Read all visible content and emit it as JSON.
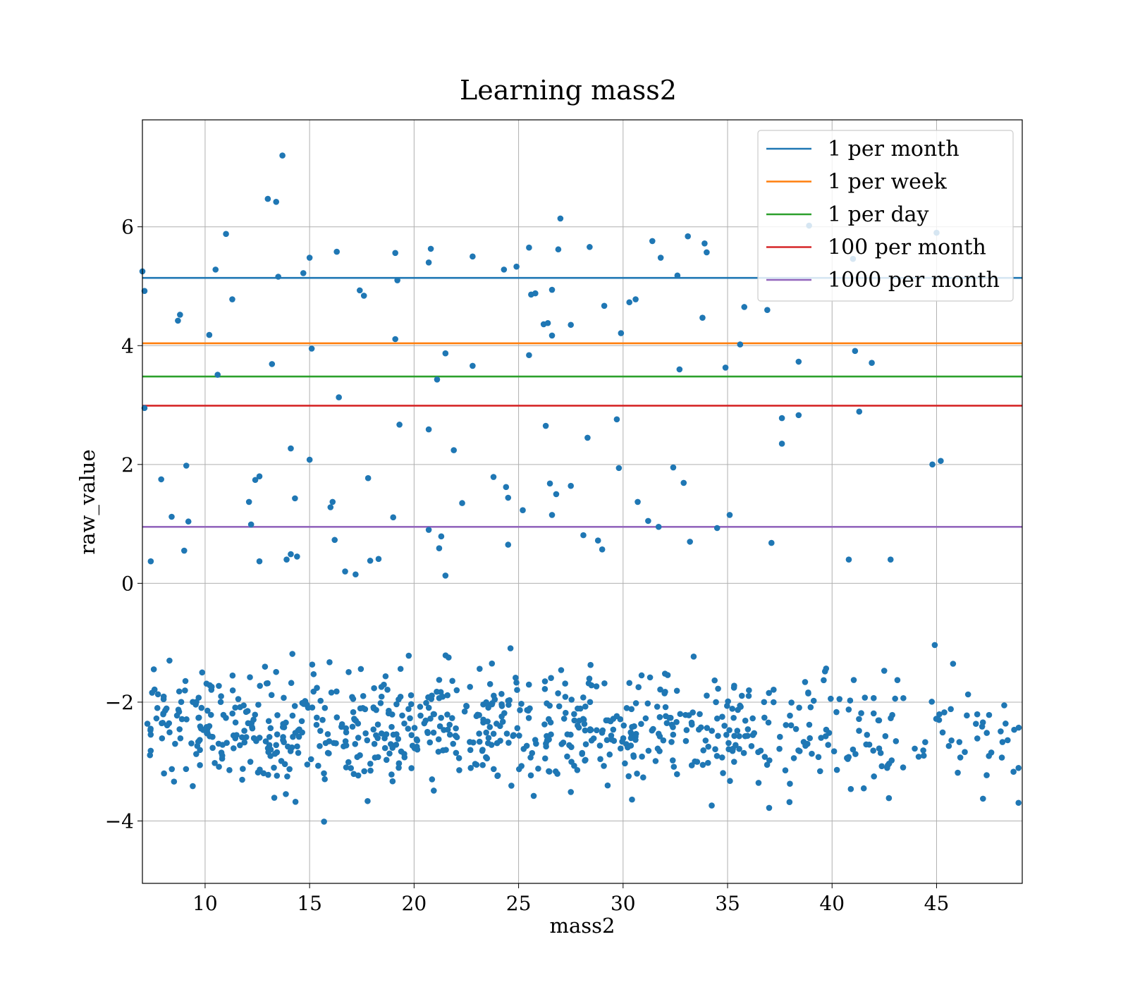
{
  "chart_data": {
    "type": "scatter",
    "title": "Learning mass2",
    "xlabel": "mass2",
    "ylabel": "raw_value",
    "xlim": [
      7.0,
      49.1
    ],
    "ylim": [
      -5.05,
      7.8
    ],
    "xticks": [
      10,
      15,
      20,
      25,
      30,
      35,
      40,
      45
    ],
    "yticks": [
      -4,
      -2,
      0,
      2,
      4,
      6
    ],
    "ytick_labels": [
      "−4",
      "−2",
      "0",
      "2",
      "4",
      "6"
    ],
    "grid": true,
    "legend_position": "top-right",
    "point_color": "#1f77b4",
    "lines": [
      {
        "name": "1 per month",
        "y": 5.14,
        "color": "#1f77b4"
      },
      {
        "name": "1 per week",
        "y": 4.04,
        "color": "#ff7f0e"
      },
      {
        "name": "1 per day",
        "y": 3.48,
        "color": "#2ca02c"
      },
      {
        "name": "100 per month",
        "y": 2.99,
        "color": "#d62728"
      },
      {
        "name": "1000 per month",
        "y": 0.95,
        "color": "#9467bd"
      }
    ],
    "points": [
      [
        7.0,
        5.25
      ],
      [
        7.1,
        4.92
      ],
      [
        7.1,
        2.95
      ],
      [
        7.4,
        0.37
      ],
      [
        7.9,
        1.75
      ],
      [
        8.4,
        1.12
      ],
      [
        8.7,
        4.42
      ],
      [
        8.8,
        4.52
      ],
      [
        9.0,
        0.55
      ],
      [
        9.1,
        1.98
      ],
      [
        9.2,
        1.04
      ],
      [
        10.2,
        4.18
      ],
      [
        10.5,
        5.28
      ],
      [
        10.6,
        3.51
      ],
      [
        11.0,
        5.88
      ],
      [
        11.3,
        4.78
      ],
      [
        12.1,
        1.37
      ],
      [
        12.2,
        0.99
      ],
      [
        12.4,
        1.74
      ],
      [
        12.6,
        1.8
      ],
      [
        12.6,
        0.37
      ],
      [
        13.0,
        6.47
      ],
      [
        13.2,
        3.69
      ],
      [
        13.4,
        6.42
      ],
      [
        13.5,
        5.16
      ],
      [
        13.7,
        7.2
      ],
      [
        13.9,
        0.4
      ],
      [
        14.1,
        0.49
      ],
      [
        14.1,
        2.27
      ],
      [
        14.3,
        1.43
      ],
      [
        14.4,
        0.45
      ],
      [
        14.7,
        5.22
      ],
      [
        15.0,
        5.48
      ],
      [
        15.0,
        2.08
      ],
      [
        15.1,
        3.95
      ],
      [
        16.0,
        1.28
      ],
      [
        16.1,
        1.37
      ],
      [
        16.3,
        5.58
      ],
      [
        16.4,
        3.13
      ],
      [
        16.2,
        0.73
      ],
      [
        16.7,
        0.2
      ],
      [
        17.2,
        0.15
      ],
      [
        17.4,
        4.93
      ],
      [
        17.6,
        4.84
      ],
      [
        17.8,
        1.77
      ],
      [
        17.9,
        0.38
      ],
      [
        18.3,
        0.41
      ],
      [
        19.0,
        1.11
      ],
      [
        19.1,
        5.56
      ],
      [
        19.1,
        4.11
      ],
      [
        19.2,
        5.1
      ],
      [
        19.3,
        2.67
      ],
      [
        20.7,
        2.59
      ],
      [
        20.7,
        0.9
      ],
      [
        20.7,
        5.4
      ],
      [
        20.8,
        5.63
      ],
      [
        21.1,
        3.43
      ],
      [
        21.2,
        0.59
      ],
      [
        21.3,
        0.79
      ],
      [
        21.5,
        0.13
      ],
      [
        21.5,
        3.87
      ],
      [
        21.9,
        2.24
      ],
      [
        22.3,
        1.35
      ],
      [
        22.8,
        3.66
      ],
      [
        22.8,
        5.5
      ],
      [
        23.8,
        1.79
      ],
      [
        24.3,
        5.28
      ],
      [
        24.4,
        1.62
      ],
      [
        24.5,
        1.44
      ],
      [
        24.5,
        0.65
      ],
      [
        24.9,
        5.33
      ],
      [
        25.2,
        1.23
      ],
      [
        25.5,
        5.65
      ],
      [
        25.5,
        3.84
      ],
      [
        25.6,
        4.86
      ],
      [
        25.8,
        4.88
      ],
      [
        26.2,
        4.36
      ],
      [
        26.3,
        2.65
      ],
      [
        26.4,
        4.38
      ],
      [
        26.5,
        1.68
      ],
      [
        26.6,
        1.15
      ],
      [
        26.6,
        4.94
      ],
      [
        26.6,
        4.17
      ],
      [
        26.8,
        1.5
      ],
      [
        26.9,
        5.62
      ],
      [
        27.0,
        6.14
      ],
      [
        27.5,
        4.35
      ],
      [
        27.5,
        1.64
      ],
      [
        28.1,
        0.81
      ],
      [
        28.3,
        2.45
      ],
      [
        28.4,
        5.66
      ],
      [
        28.8,
        0.72
      ],
      [
        29.0,
        0.57
      ],
      [
        29.1,
        4.67
      ],
      [
        29.7,
        2.76
      ],
      [
        29.8,
        1.94
      ],
      [
        29.9,
        4.21
      ],
      [
        30.3,
        4.73
      ],
      [
        30.6,
        4.78
      ],
      [
        30.7,
        1.37
      ],
      [
        31.2,
        1.05
      ],
      [
        31.4,
        5.76
      ],
      [
        31.7,
        0.95
      ],
      [
        31.8,
        5.48
      ],
      [
        32.4,
        1.95
      ],
      [
        32.6,
        5.18
      ],
      [
        32.7,
        3.6
      ],
      [
        32.9,
        1.69
      ],
      [
        33.1,
        5.84
      ],
      [
        33.2,
        0.7
      ],
      [
        33.8,
        4.47
      ],
      [
        33.9,
        5.72
      ],
      [
        34.0,
        5.57
      ],
      [
        34.5,
        0.93
      ],
      [
        34.9,
        3.63
      ],
      [
        35.1,
        1.15
      ],
      [
        35.6,
        4.02
      ],
      [
        35.8,
        4.65
      ],
      [
        36.9,
        4.6
      ],
      [
        37.1,
        0.68
      ],
      [
        37.6,
        2.78
      ],
      [
        37.6,
        2.35
      ],
      [
        38.4,
        3.73
      ],
      [
        38.4,
        2.83
      ],
      [
        40.8,
        0.4
      ],
      [
        41.0,
        5.46
      ],
      [
        41.1,
        3.91
      ],
      [
        41.3,
        2.89
      ],
      [
        41.9,
        3.71
      ],
      [
        42.8,
        0.4
      ],
      [
        44.8,
        2.0
      ],
      [
        45.0,
        5.9
      ],
      [
        45.2,
        2.06
      ],
      [
        38.9,
        6.02
      ]
    ]
  }
}
